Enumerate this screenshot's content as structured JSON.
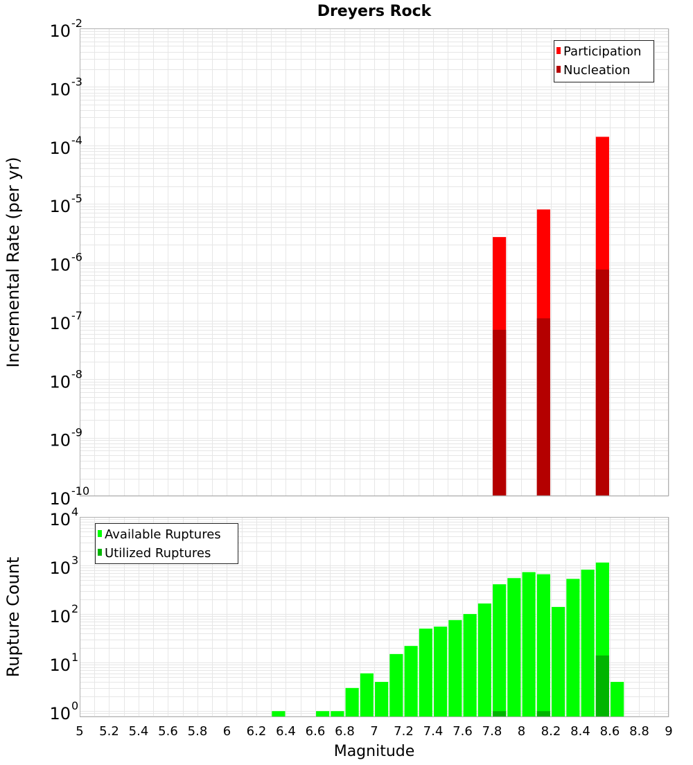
{
  "chart_data": [
    {
      "type": "bar",
      "title": "Dreyers Rock",
      "xlabel": "",
      "ylabel": "Incremental Rate (per yr)",
      "yscale": "log",
      "ylim": [
        1e-10,
        0.01
      ],
      "xlim": [
        5,
        9
      ],
      "grid": true,
      "legend_position": "top-right",
      "y_ticks": [
        {
          "base": "10",
          "exp": "-10",
          "value": 1e-10
        },
        {
          "base": "10",
          "exp": "-9",
          "value": 1e-09
        },
        {
          "base": "10",
          "exp": "-8",
          "value": 1e-08
        },
        {
          "base": "10",
          "exp": "-7",
          "value": 1e-07
        },
        {
          "base": "10",
          "exp": "-6",
          "value": 1e-06
        },
        {
          "base": "10",
          "exp": "-5",
          "value": 1e-05
        },
        {
          "base": "10",
          "exp": "-4",
          "value": 0.0001
        },
        {
          "base": "10",
          "exp": "-3",
          "value": 0.001
        },
        {
          "base": "10",
          "exp": "-2",
          "value": 0.01
        }
      ],
      "series": [
        {
          "name": "Participation",
          "color": "#ff0000",
          "points": [
            {
              "x": 7.85,
              "y": 2.7e-06
            },
            {
              "x": 8.15,
              "y": 8e-06
            },
            {
              "x": 8.55,
              "y": 0.00014
            }
          ]
        },
        {
          "name": "Nucleation",
          "color": "#b40000",
          "points": [
            {
              "x": 7.85,
              "y": 7e-08
            },
            {
              "x": 8.15,
              "y": 1.1e-07
            },
            {
              "x": 8.55,
              "y": 7.5e-07
            }
          ]
        }
      ]
    },
    {
      "type": "bar",
      "title": "",
      "xlabel": "Magnitude",
      "ylabel": "Rupture Count",
      "yscale": "log",
      "ylim": [
        0.75,
        10000
      ],
      "xlim": [
        5,
        9
      ],
      "grid": true,
      "legend_position": "top-left",
      "x_ticks": [
        "5",
        "5.2",
        "5.4",
        "5.6",
        "5.8",
        "6",
        "6.2",
        "6.4",
        "6.6",
        "6.8",
        "7",
        "7.2",
        "7.4",
        "7.6",
        "7.8",
        "8",
        "8.2",
        "8.4",
        "8.6",
        "8.8",
        "9"
      ],
      "y_ticks": [
        {
          "base": "10",
          "exp": "0",
          "value": 1
        },
        {
          "base": "10",
          "exp": "1",
          "value": 10
        },
        {
          "base": "10",
          "exp": "2",
          "value": 100
        },
        {
          "base": "10",
          "exp": "3",
          "value": 1000
        },
        {
          "base": "10",
          "exp": "4",
          "value": 10000
        }
      ],
      "series": [
        {
          "name": "Available Ruptures",
          "color": "#00ff00",
          "points": [
            {
              "x": 6.35,
              "y": 1
            },
            {
              "x": 6.65,
              "y": 1
            },
            {
              "x": 6.75,
              "y": 1
            },
            {
              "x": 6.85,
              "y": 3
            },
            {
              "x": 6.95,
              "y": 6
            },
            {
              "x": 7.05,
              "y": 4
            },
            {
              "x": 7.15,
              "y": 15
            },
            {
              "x": 7.25,
              "y": 22
            },
            {
              "x": 7.35,
              "y": 50
            },
            {
              "x": 7.45,
              "y": 55
            },
            {
              "x": 7.55,
              "y": 75
            },
            {
              "x": 7.65,
              "y": 100
            },
            {
              "x": 7.75,
              "y": 165
            },
            {
              "x": 7.85,
              "y": 410
            },
            {
              "x": 7.95,
              "y": 550
            },
            {
              "x": 8.05,
              "y": 730
            },
            {
              "x": 8.15,
              "y": 660
            },
            {
              "x": 8.25,
              "y": 140
            },
            {
              "x": 8.35,
              "y": 530
            },
            {
              "x": 8.45,
              "y": 820
            },
            {
              "x": 8.55,
              "y": 1150
            },
            {
              "x": 8.65,
              "y": 4
            }
          ]
        },
        {
          "name": "Utilized Ruptures",
          "color": "#00b400",
          "points": [
            {
              "x": 7.85,
              "y": 1
            },
            {
              "x": 8.15,
              "y": 1
            },
            {
              "x": 8.55,
              "y": 14
            }
          ]
        }
      ]
    }
  ]
}
